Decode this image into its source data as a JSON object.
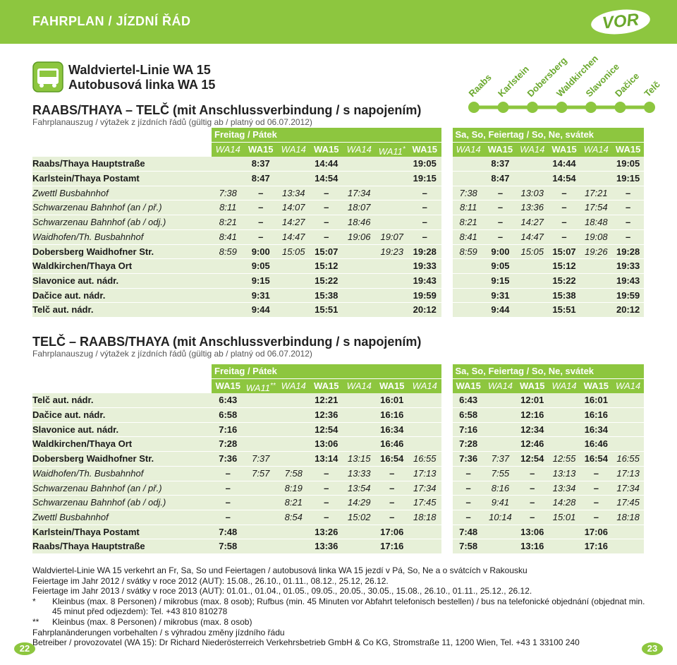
{
  "header": {
    "title": "FAHRPLAN / JÍZDNÍ ŘÁD",
    "logo": "VOR"
  },
  "line": {
    "name_de": "Waldviertel-Linie WA 15",
    "name_cz": "Autobusová linka WA 15"
  },
  "route_stops": [
    "Raabs",
    "Karlstein",
    "Dobersberg",
    "Waldkirchen",
    "Slavonice",
    "Dačice",
    "Telč"
  ],
  "sections": [
    {
      "title": "RAABS/THAYA – TELČ (mit Anschlussverbindung / s napojením)",
      "subtitle": "Fahrplanauszug / výtažek z jízdních řádů (gültig ab / platný od 06.07.2012)",
      "days": [
        {
          "label": "Freitag / Pátek",
          "columns": [
            {
              "text": "WA14",
              "italic": true
            },
            {
              "text": "WA15",
              "italic": false
            },
            {
              "text": "WA14",
              "italic": true
            },
            {
              "text": "WA15",
              "italic": false
            },
            {
              "text": "WA14",
              "italic": true
            },
            {
              "text": "WA11",
              "note": "*",
              "italic": true
            },
            {
              "text": "WA15",
              "italic": false
            }
          ]
        },
        {
          "label": "Sa, So, Feiertag / So, Ne, svátek",
          "columns": [
            {
              "text": "WA14",
              "italic": true
            },
            {
              "text": "WA15",
              "italic": false
            },
            {
              "text": "WA14",
              "italic": true
            },
            {
              "text": "WA15",
              "italic": false
            },
            {
              "text": "WA14",
              "italic": true
            },
            {
              "text": "WA15",
              "italic": false
            }
          ]
        }
      ],
      "rows": [
        {
          "stop": "Raabs/Thaya Hauptstraße",
          "italic": false,
          "times": [
            [
              null,
              "8:37",
              null,
              "14:44",
              null,
              null,
              "19:05"
            ],
            [
              null,
              "8:37",
              null,
              "14:44",
              null,
              "19:05"
            ]
          ]
        },
        {
          "stop": "Karlstein/Thaya Postamt",
          "italic": false,
          "times": [
            [
              null,
              "8:47",
              null,
              "14:54",
              null,
              null,
              "19:15"
            ],
            [
              null,
              "8:47",
              null,
              "14:54",
              null,
              "19:15"
            ]
          ]
        },
        {
          "stop": "Zwettl Busbahnhof",
          "italic": true,
          "times": [
            [
              "7:38",
              "–",
              "13:34",
              "–",
              "17:34",
              null,
              "–"
            ],
            [
              "7:38",
              "–",
              "13:03",
              "–",
              "17:21",
              "–"
            ]
          ]
        },
        {
          "stop": "Schwarzenau Bahnhof (an / př.)",
          "italic": true,
          "times": [
            [
              "8:11",
              "–",
              "14:07",
              "–",
              "18:07",
              null,
              "–"
            ],
            [
              "8:11",
              "–",
              "13:36",
              "–",
              "17:54",
              "–"
            ]
          ]
        },
        {
          "stop": "Schwarzenau Bahnhof (ab / odj.)",
          "italic": true,
          "times": [
            [
              "8:21",
              "–",
              "14:27",
              "–",
              "18:46",
              null,
              "–"
            ],
            [
              "8:21",
              "–",
              "14:27",
              "–",
              "18:48",
              "–"
            ]
          ]
        },
        {
          "stop": "Waidhofen/Th. Busbahnhof",
          "italic": true,
          "times": [
            [
              "8:41",
              "–",
              "14:47",
              "–",
              "19:06",
              "19:07",
              "–"
            ],
            [
              "8:41",
              "–",
              "14:47",
              "–",
              "19:08",
              "–"
            ]
          ]
        },
        {
          "stop": "Dobersberg Waidhofner Str.",
          "italic": false,
          "times": [
            [
              "8:59",
              "9:00",
              "15:05",
              "15:07",
              null,
              "19:23",
              "19:28"
            ],
            [
              "8:59",
              "9:00",
              "15:05",
              "15:07",
              "19:26",
              "19:28"
            ]
          ]
        },
        {
          "stop": "Waldkirchen/Thaya Ort",
          "italic": false,
          "times": [
            [
              null,
              "9:05",
              null,
              "15:12",
              null,
              null,
              "19:33"
            ],
            [
              null,
              "9:05",
              null,
              "15:12",
              null,
              "19:33"
            ]
          ]
        },
        {
          "stop": "Slavonice aut. nádr.",
          "italic": false,
          "times": [
            [
              null,
              "9:15",
              null,
              "15:22",
              null,
              null,
              "19:43"
            ],
            [
              null,
              "9:15",
              null,
              "15:22",
              null,
              "19:43"
            ]
          ]
        },
        {
          "stop": "Dačice aut. nádr.",
          "italic": false,
          "times": [
            [
              null,
              "9:31",
              null,
              "15:38",
              null,
              null,
              "19:59"
            ],
            [
              null,
              "9:31",
              null,
              "15:38",
              null,
              "19:59"
            ]
          ]
        },
        {
          "stop": "Telč aut. nádr.",
          "italic": false,
          "times": [
            [
              null,
              "9:44",
              null,
              "15:51",
              null,
              null,
              "20:12"
            ],
            [
              null,
              "9:44",
              null,
              "15:51",
              null,
              "20:12"
            ]
          ]
        }
      ]
    },
    {
      "title": "TELČ – RAABS/THAYA (mit Anschlussverbindung / s napojením)",
      "subtitle": "Fahrplanauszug / výtažek z jízdních řádů (gültig ab / platný od 06.07.2012)",
      "days": [
        {
          "label": "Freitag / Pátek",
          "columns": [
            {
              "text": "WA15",
              "italic": false
            },
            {
              "text": "WA11",
              "note": "**",
              "italic": true
            },
            {
              "text": "WA14",
              "italic": true
            },
            {
              "text": "WA15",
              "italic": false
            },
            {
              "text": "WA14",
              "italic": true
            },
            {
              "text": "WA15",
              "italic": false
            },
            {
              "text": "WA14",
              "italic": true
            }
          ]
        },
        {
          "label": "Sa, So, Feiertag / So, Ne, svátek",
          "columns": [
            {
              "text": "WA15",
              "italic": false
            },
            {
              "text": "WA14",
              "italic": true
            },
            {
              "text": "WA15",
              "italic": false
            },
            {
              "text": "WA14",
              "italic": true
            },
            {
              "text": "WA15",
              "italic": false
            },
            {
              "text": "WA14",
              "italic": true
            }
          ]
        }
      ],
      "rows": [
        {
          "stop": "Telč aut. nádr.",
          "italic": false,
          "times": [
            [
              "6:43",
              null,
              null,
              "12:21",
              null,
              "16:01",
              null
            ],
            [
              "6:43",
              null,
              "12:01",
              null,
              "16:01",
              null
            ]
          ]
        },
        {
          "stop": "Dačice aut. nádr.",
          "italic": false,
          "times": [
            [
              "6:58",
              null,
              null,
              "12:36",
              null,
              "16:16",
              null
            ],
            [
              "6:58",
              null,
              "12:16",
              null,
              "16:16",
              null
            ]
          ]
        },
        {
          "stop": "Slavonice aut. nádr.",
          "italic": false,
          "times": [
            [
              "7:16",
              null,
              null,
              "12:54",
              null,
              "16:34",
              null
            ],
            [
              "7:16",
              null,
              "12:34",
              null,
              "16:34",
              null
            ]
          ]
        },
        {
          "stop": "Waldkirchen/Thaya Ort",
          "italic": false,
          "times": [
            [
              "7:28",
              null,
              null,
              "13:06",
              null,
              "16:46",
              null
            ],
            [
              "7:28",
              null,
              "12:46",
              null,
              "16:46",
              null
            ]
          ]
        },
        {
          "stop": "Dobersberg Waidhofner Str.",
          "italic": false,
          "times": [
            [
              "7:36",
              "7:37",
              null,
              "13:14",
              "13:15",
              "16:54",
              "16:55"
            ],
            [
              "7:36",
              "7:37",
              "12:54",
              "12:55",
              "16:54",
              "16:55"
            ]
          ]
        },
        {
          "stop": "Waidhofen/Th. Busbahnhof",
          "italic": true,
          "times": [
            [
              "–",
              "7:57",
              "7:58",
              "–",
              "13:33",
              "–",
              "17:13"
            ],
            [
              "–",
              "7:55",
              "–",
              "13:13",
              "–",
              "17:13"
            ]
          ]
        },
        {
          "stop": "Schwarzenau Bahnhof (an / př.)",
          "italic": true,
          "times": [
            [
              "–",
              null,
              "8:19",
              "–",
              "13:54",
              "–",
              "17:34"
            ],
            [
              "–",
              "8:16",
              "–",
              "13:34",
              "–",
              "17:34"
            ]
          ]
        },
        {
          "stop": "Schwarzenau Bahnhof (ab / odj.)",
          "italic": true,
          "times": [
            [
              "–",
              null,
              "8:21",
              "–",
              "14:29",
              "–",
              "17:45"
            ],
            [
              "–",
              "9:41",
              "–",
              "14:28",
              "–",
              "17:45"
            ]
          ]
        },
        {
          "stop": "Zwettl Busbahnhof",
          "italic": true,
          "times": [
            [
              "–",
              null,
              "8:54",
              "–",
              "15:02",
              "–",
              "18:18"
            ],
            [
              "–",
              "10:14",
              "–",
              "15:01",
              "–",
              "18:18"
            ]
          ]
        },
        {
          "stop": "Karlstein/Thaya Postamt",
          "italic": false,
          "times": [
            [
              "7:48",
              null,
              null,
              "13:26",
              null,
              "17:06",
              null
            ],
            [
              "7:48",
              null,
              "13:06",
              null,
              "17:06",
              null
            ]
          ]
        },
        {
          "stop": "Raabs/Thaya Hauptstraße",
          "italic": false,
          "times": [
            [
              "7:58",
              null,
              null,
              "13:36",
              null,
              "17:16",
              null
            ],
            [
              "7:58",
              null,
              "13:16",
              null,
              "17:16",
              null
            ]
          ]
        }
      ]
    }
  ],
  "footer": [
    {
      "text": "Waldviertel-Linie WA 15 verkehrt an Fr, Sa, So und Feiertagen / autobusová linka WA 15 jezdí v Pá, So, Ne a o svátcích v Rakousku"
    },
    {
      "text": "Feiertage im Jahr 2012 / svátky v roce 2012 (AUT): 15.08., 26.10., 01.11., 08.12., 25.12, 26.12."
    },
    {
      "text": "Feiertage im Jahr 2013 / svátky v roce 2013 (AUT): 01.01., 01.04., 01.05., 09.05., 20.05., 30.05., 15.08., 26.10., 01.11., 25.12., 26.12."
    },
    {
      "mark": "*",
      "text": "Kleinbus (max. 8 Personen) / mikrobus (max. 8 osob); Rufbus (min. 45 Minuten vor Abfahrt telefonisch bestellen) / bus na telefonické objednání (objednat min. 45 minut před odjezdem): Tel. +43 810 810278"
    },
    {
      "mark": "**",
      "text": "Kleinbus (max. 8 Personen) / mikrobus (max. 8 osob)"
    },
    {
      "text": "Fahrplanänderungen vorbehalten / s výhradou změny jízdního řádu"
    },
    {
      "text": "Betreiber / provozovatel (WA 15): Dr Richard Niederösterreich Verkehrsbetrieb GmbH & Co KG, Stromstraße 11, 1200 Wien, Tel. +43 1 33100 240"
    }
  ],
  "pages": [
    "22",
    "23"
  ]
}
